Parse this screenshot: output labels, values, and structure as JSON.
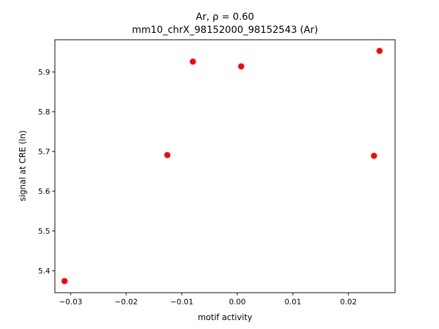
{
  "chart_data": {
    "type": "scatter",
    "title": "Ar, ρ = 0.60",
    "subtitle": "mm10_chrX_98152000_98152543 (Ar)",
    "x_label": "motif activity",
    "y_label": "signal at CRE (ln)",
    "color": "#ff0000",
    "x": [
      -0.0311,
      -0.0126,
      -0.008,
      0.0007,
      0.0246,
      0.0256
    ],
    "values": [
      5.374,
      5.691,
      5.926,
      5.914,
      5.689,
      5.953
    ],
    "xlim": [
      -0.03284,
      0.0284
    ],
    "ylim": [
      5.3448,
      5.981
    ],
    "xticks": [
      {
        "value": -0.03,
        "label": "−0.03"
      },
      {
        "value": -0.02,
        "label": "−0.02"
      },
      {
        "value": -0.01,
        "label": "−0.01"
      },
      {
        "value": 0,
        "label": "0.00"
      },
      {
        "value": 0.01,
        "label": "0.01"
      },
      {
        "value": 0.02,
        "label": "0.02"
      }
    ],
    "yticks": [
      5.4,
      5.5,
      5.6,
      5.7,
      5.8,
      5.9
    ]
  }
}
